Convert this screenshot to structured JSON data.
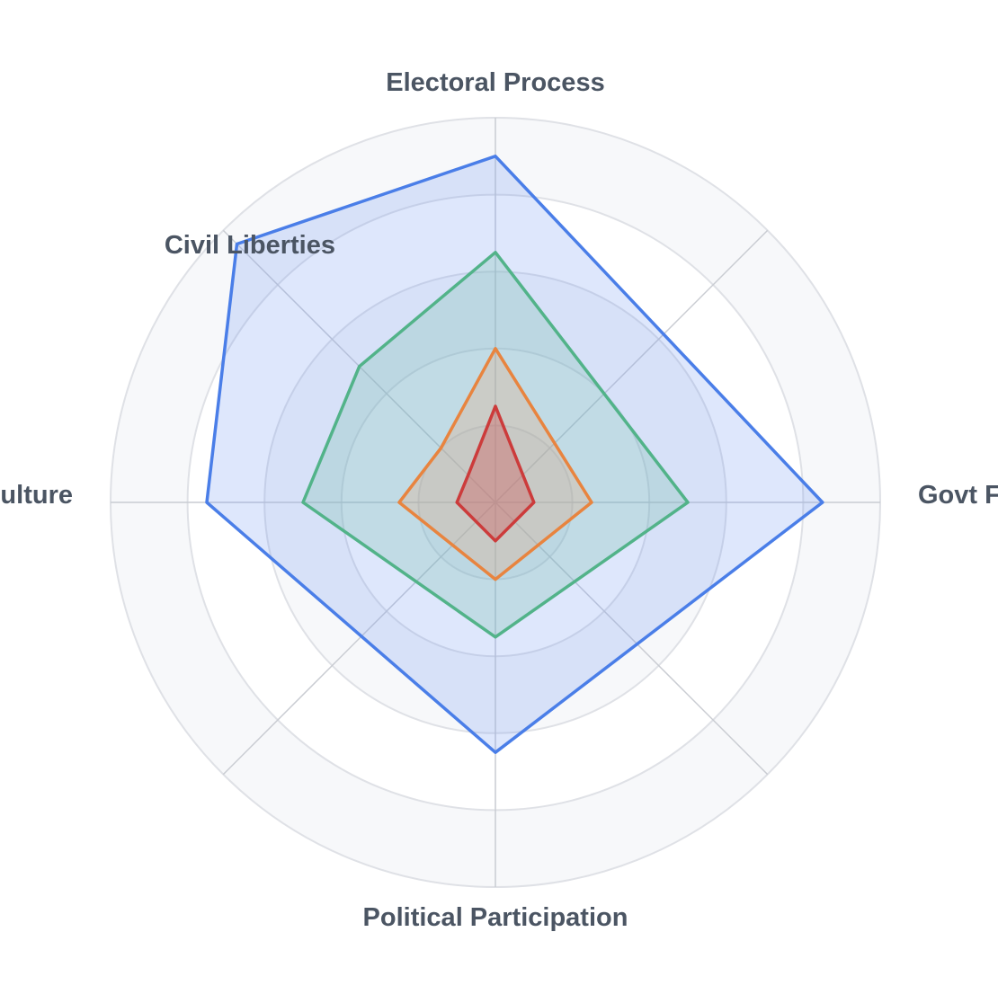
{
  "chart_data": {
    "type": "radar",
    "axes": [
      "Electoral Process",
      "Govt Functioning",
      "Political Participation",
      "Political Culture",
      "Civil Liberties"
    ],
    "range": [
      0,
      10
    ],
    "ring_values": [
      2,
      4,
      6,
      8,
      10
    ],
    "grid": true,
    "legend": "none",
    "series": [
      {
        "values": [
          9.0,
          8.5,
          6.5,
          7.5,
          9.5
        ],
        "color": "#4a7ee8",
        "fill": "rgba(104, 144, 240, 0.22)"
      },
      {
        "values": [
          6.5,
          5.0,
          3.5,
          5.0,
          5.0
        ],
        "color": "#52b389",
        "fill": "rgba(120, 190, 170, 0.28)"
      },
      {
        "values": [
          4.0,
          2.5,
          2.0,
          2.5,
          2.0
        ],
        "color": "#e8843f",
        "fill": "rgba(235, 160, 110, 0.25)"
      },
      {
        "values": [
          2.5,
          1.0,
          1.0,
          1.0,
          1.0
        ],
        "color": "#cc3b3b",
        "fill": "rgba(205, 80, 80, 0.35)"
      }
    ],
    "style": {
      "label_color": "#4b5563",
      "ring_band_color": "#f7f8fa",
      "ring_line_color": "#dfe1e6",
      "spoke_color": "#c9ccd2"
    }
  }
}
